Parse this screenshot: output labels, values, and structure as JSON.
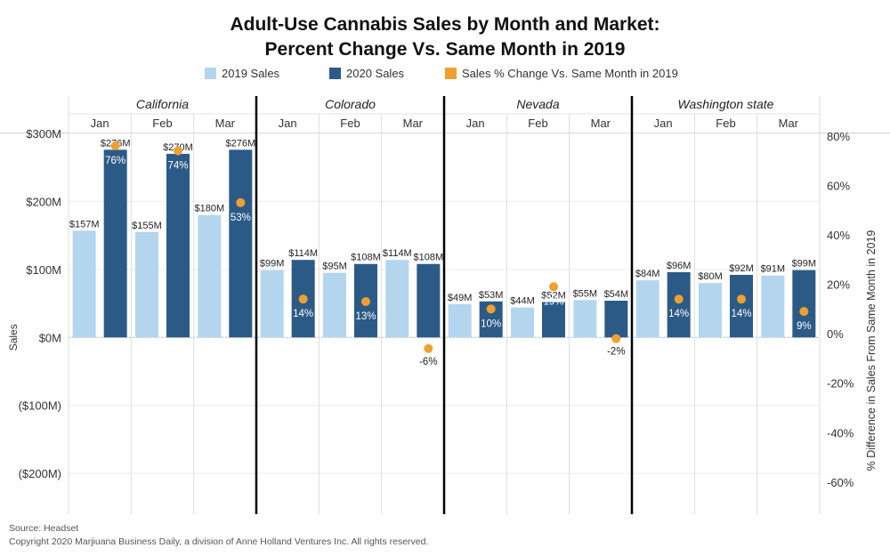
{
  "title_line1": "Adult-Use Cannabis Sales by Month and Market:",
  "title_line2": "Percent Change Vs. Same Month in 2019",
  "source": "Source: Headset",
  "copyright": "Copyright 2020 Marjiuana Business Daily, a division of Anne Holland Ventures Inc. All rights reserved.",
  "colors": {
    "sales_2019": "#b3d6ee",
    "sales_2020": "#2c5a87",
    "pct_change": "#f0a030"
  },
  "chart_data": {
    "type": "bar",
    "legend": [
      "2019 Sales",
      "2020 Sales",
      "Sales % Change Vs. Same Month in 2019"
    ],
    "legend_position": "top",
    "ylabel": "Sales",
    "y2label": "% Difference in Sales From Same Month in 2019",
    "ylim": [
      -260,
      300
    ],
    "y2lim": [
      -73,
      81
    ],
    "yticks": [
      {
        "value": 300,
        "label": "$300M"
      },
      {
        "value": 200,
        "label": "$200M"
      },
      {
        "value": 100,
        "label": "$100M"
      },
      {
        "value": 0,
        "label": "$0M"
      },
      {
        "value": -100,
        "label": "($100M)"
      },
      {
        "value": -200,
        "label": "($200M)"
      }
    ],
    "y2ticks": [
      {
        "value": 80,
        "label": "80%"
      },
      {
        "value": 60,
        "label": "60%"
      },
      {
        "value": 40,
        "label": "40%"
      },
      {
        "value": 20,
        "label": "20%"
      },
      {
        "value": 0,
        "label": "0%"
      },
      {
        "value": -20,
        "label": "-20%"
      },
      {
        "value": -40,
        "label": "-40%"
      },
      {
        "value": -60,
        "label": "-60%"
      }
    ],
    "markets": [
      {
        "name": "California",
        "months": [
          {
            "month": "Jan",
            "sales_2019": 157,
            "label_2019": "$157M",
            "sales_2020": 276,
            "label_2020": "$276M",
            "pct": 76,
            "pct_label": "76%"
          },
          {
            "month": "Feb",
            "sales_2019": 155,
            "label_2019": "$155M",
            "sales_2020": 270,
            "label_2020": "$270M",
            "pct": 74,
            "pct_label": "74%"
          },
          {
            "month": "Mar",
            "sales_2019": 180,
            "label_2019": "$180M",
            "sales_2020": 276,
            "label_2020": "$276M",
            "pct": 53,
            "pct_label": "53%"
          }
        ]
      },
      {
        "name": "Colorado",
        "months": [
          {
            "month": "Jan",
            "sales_2019": 99,
            "label_2019": "$99M",
            "sales_2020": 114,
            "label_2020": "$114M",
            "pct": 14,
            "pct_label": "14%"
          },
          {
            "month": "Feb",
            "sales_2019": 95,
            "label_2019": "$95M",
            "sales_2020": 108,
            "label_2020": "$108M",
            "pct": 13,
            "pct_label": "13%"
          },
          {
            "month": "Mar",
            "sales_2019": 114,
            "label_2019": "$114M",
            "sales_2020": 108,
            "label_2020": "$108M",
            "pct": -6,
            "pct_label": "-6%"
          }
        ]
      },
      {
        "name": "Nevada",
        "months": [
          {
            "month": "Jan",
            "sales_2019": 49,
            "label_2019": "$49M",
            "sales_2020": 53,
            "label_2020": "$53M",
            "pct": 10,
            "pct_label": "10%"
          },
          {
            "month": "Feb",
            "sales_2019": 44,
            "label_2019": "$44M",
            "sales_2020": 52,
            "label_2020": "$52M",
            "pct": 19,
            "pct_label": "19%"
          },
          {
            "month": "Mar",
            "sales_2019": 55,
            "label_2019": "$55M",
            "sales_2020": 54,
            "label_2020": "$54M",
            "pct": -2,
            "pct_label": "-2%"
          }
        ]
      },
      {
        "name": "Washington state",
        "months": [
          {
            "month": "Jan",
            "sales_2019": 84,
            "label_2019": "$84M",
            "sales_2020": 96,
            "label_2020": "$96M",
            "pct": 14,
            "pct_label": "14%"
          },
          {
            "month": "Feb",
            "sales_2019": 80,
            "label_2019": "$80M",
            "sales_2020": 92,
            "label_2020": "$92M",
            "pct": 14,
            "pct_label": "14%"
          },
          {
            "month": "Mar",
            "sales_2019": 91,
            "label_2019": "$91M",
            "sales_2020": 99,
            "label_2020": "$99M",
            "pct": 9,
            "pct_label": "9%"
          }
        ]
      }
    ]
  }
}
